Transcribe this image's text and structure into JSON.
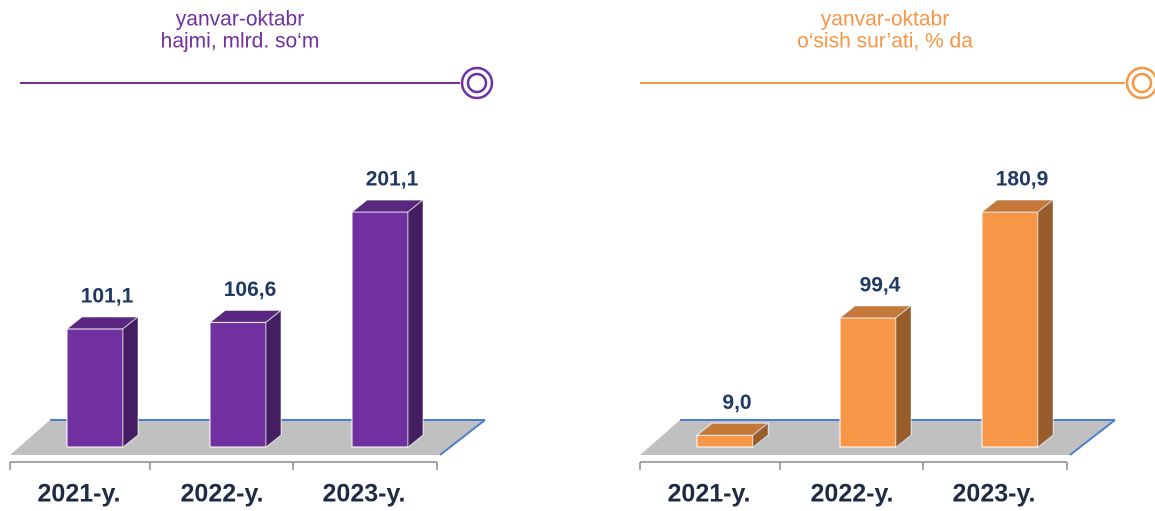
{
  "chart_data": [
    {
      "type": "bar",
      "title": "yanvar-oktabr",
      "subtitle": "hajmi, mlrd. so‘m",
      "categories": [
        "2021-y.",
        "2022-y.",
        "2023-y."
      ],
      "values": [
        101.1,
        106.6,
        201.1
      ],
      "value_labels": [
        "101,1",
        "106,6",
        "201,1"
      ],
      "color": "#7030a0"
    },
    {
      "type": "bar",
      "title": "yanvar-oktabr",
      "subtitle": "o‘sish sur’ati, % da",
      "categories": [
        "2021-y.",
        "2022-y.",
        "2023-y."
      ],
      "values": [
        9.0,
        99.4,
        180.9
      ],
      "value_labels": [
        "9,0",
        "99,4",
        "180,9"
      ],
      "color": "#f79646"
    }
  ]
}
